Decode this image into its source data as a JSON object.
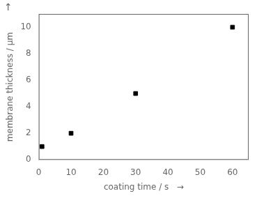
{
  "chart_data": {
    "type": "scatter",
    "x_label": "coating time / s   →",
    "y_label": "membrane thickness / μm",
    "annotations": [
      "↑"
    ],
    "x": [
      1,
      10,
      30,
      60
    ],
    "values": [
      1,
      2,
      5,
      10
    ],
    "color": "black",
    "marker": "square",
    "xlim": [
      0,
      65
    ],
    "ylim": [
      0,
      11
    ],
    "xticks": [
      0,
      10,
      20,
      30,
      40,
      50,
      60
    ],
    "yticks": [
      0,
      2,
      4,
      6,
      8,
      10
    ],
    "grid": false
  }
}
